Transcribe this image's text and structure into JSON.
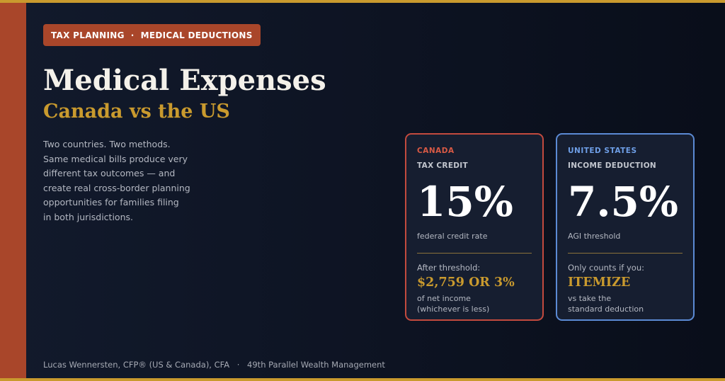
{
  "tag": {
    "left": "TAX PLANNING",
    "separator": "·",
    "right": "MEDICAL DEDUCTIONS"
  },
  "title": "Medical Expenses",
  "subtitle": "Canada vs the US",
  "intro_lines": [
    "Two countries. Two methods.",
    "Same medical bills produce very",
    "different tax outcomes — and",
    "create real cross-border planning",
    "opportunities for families filing",
    "in both jurisdictions."
  ],
  "cards": {
    "canada": {
      "country": "CANADA",
      "method": "TAX CREDIT",
      "big_value": "15%",
      "caption": "federal credit rate",
      "label": "After threshold:",
      "highlight": "$2,759 OR 3%",
      "note_lines": [
        "of net income",
        "(whichever is less)"
      ]
    },
    "us": {
      "country": "UNITED STATES",
      "method": "INCOME DEDUCTION",
      "big_value": "7.5%",
      "caption": "AGI threshold",
      "label": "Only counts if you:",
      "highlight": "ITEMIZE",
      "note_lines": [
        "vs take the",
        "standard deduction"
      ]
    }
  },
  "footer": {
    "author": "Lucas Wennersten, CFP® (US & Canada), CFA",
    "separator": "·",
    "firm": "49th Parallel Wealth Management"
  },
  "colors": {
    "background": "#0d1220",
    "accent_gold": "#c99a2e",
    "accent_rust": "#a9462a",
    "canada_red": "#c34a3e",
    "us_blue": "#5b8ad4"
  }
}
